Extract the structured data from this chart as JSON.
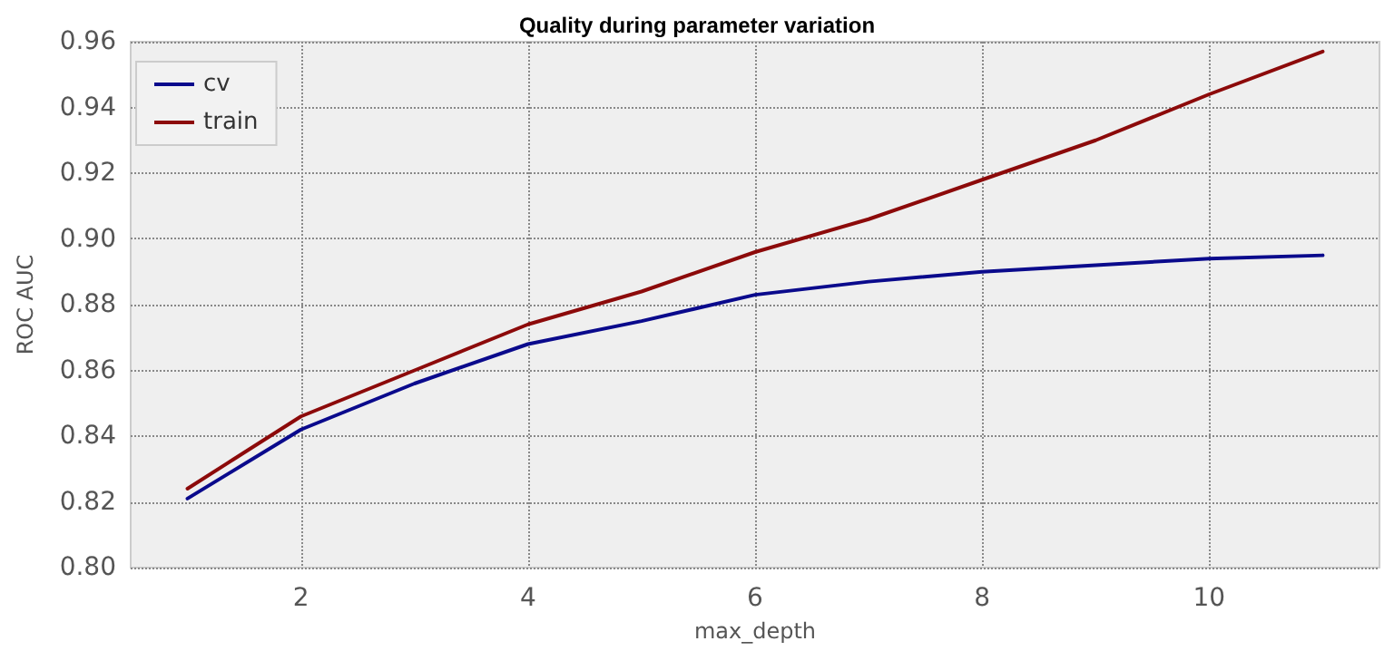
{
  "chart_data": {
    "type": "line",
    "title": "Quality during parameter variation",
    "xlabel": "max_depth",
    "ylabel": "ROC AUC",
    "x": [
      1,
      2,
      3,
      4,
      5,
      6,
      7,
      8,
      9,
      10,
      11
    ],
    "series": [
      {
        "name": "cv",
        "color": "#0a0a8c",
        "values": [
          0.821,
          0.842,
          0.856,
          0.868,
          0.875,
          0.883,
          0.887,
          0.89,
          0.892,
          0.894,
          0.895
        ]
      },
      {
        "name": "train",
        "color": "#8c0a0a",
        "values": [
          0.824,
          0.846,
          0.86,
          0.874,
          0.884,
          0.896,
          0.906,
          0.918,
          0.93,
          0.944,
          0.957
        ]
      }
    ],
    "xlim": [
      0.5,
      11.5
    ],
    "xticks": [
      2,
      4,
      6,
      8,
      10
    ],
    "ylim": [
      0.8,
      0.96
    ],
    "yticks": [
      {
        "value": 0.8,
        "label": "0.80"
      },
      {
        "value": 0.82,
        "label": "0.82"
      },
      {
        "value": 0.84,
        "label": "0.84"
      },
      {
        "value": 0.86,
        "label": "0.86"
      },
      {
        "value": 0.88,
        "label": "0.88"
      },
      {
        "value": 0.9,
        "label": "0.90"
      },
      {
        "value": 0.92,
        "label": "0.92"
      },
      {
        "value": 0.94,
        "label": "0.94"
      },
      {
        "value": 0.96,
        "label": "0.96"
      }
    ],
    "grid": true,
    "legend": "top left",
    "marker": "none",
    "line_style": "solid"
  }
}
